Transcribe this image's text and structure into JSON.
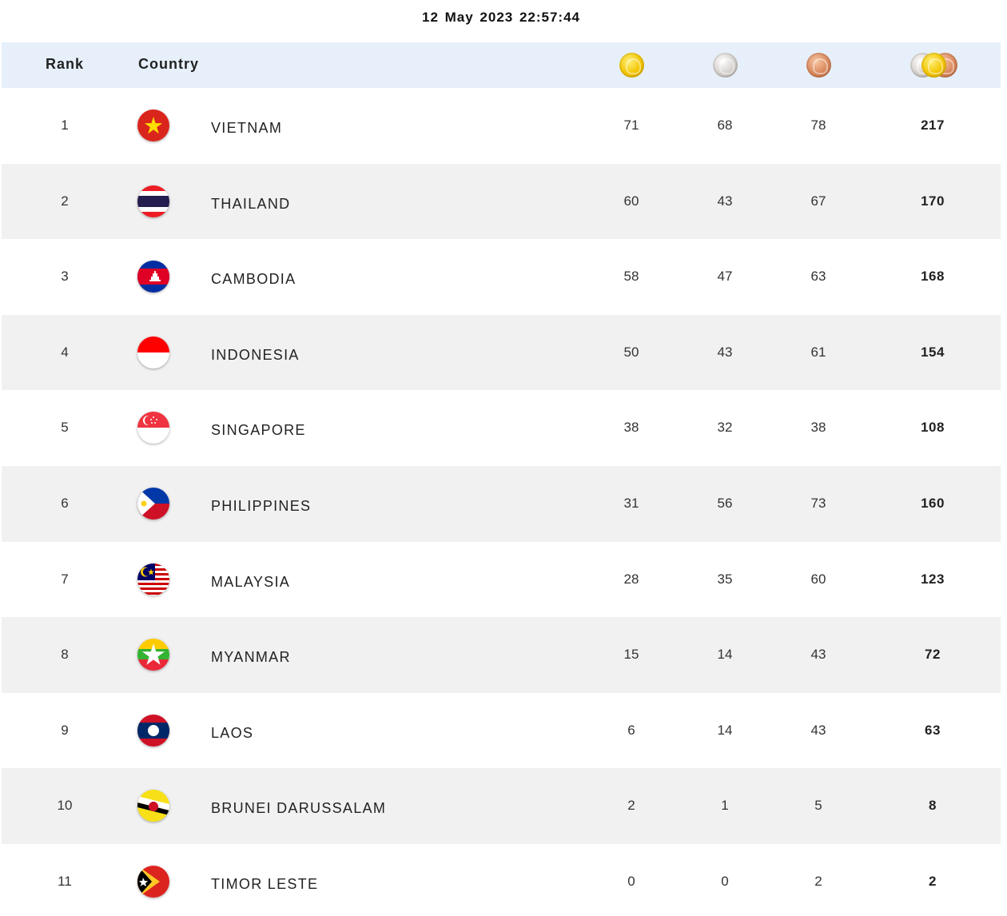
{
  "timestamp": "12 May 2023  22:57:44",
  "header": {
    "rank": "Rank",
    "country": "Country",
    "gold_icon": "gold-medal-icon",
    "silver_icon": "silver-medal-icon",
    "bronze_icon": "bronze-medal-icon",
    "total_icon": "all-medals-icon"
  },
  "colors": {
    "header_bg": "#e7f0fa",
    "row_alt_bg": "#f1f1f1"
  },
  "rows": [
    {
      "rank": "1",
      "country": "VIETNAM",
      "flag": "vietnam-flag-icon",
      "gold": "71",
      "silver": "68",
      "bronze": "78",
      "total": "217"
    },
    {
      "rank": "2",
      "country": "THAILAND",
      "flag": "thailand-flag-icon",
      "gold": "60",
      "silver": "43",
      "bronze": "67",
      "total": "170"
    },
    {
      "rank": "3",
      "country": "CAMBODIA",
      "flag": "cambodia-flag-icon",
      "gold": "58",
      "silver": "47",
      "bronze": "63",
      "total": "168"
    },
    {
      "rank": "4",
      "country": "INDONESIA",
      "flag": "indonesia-flag-icon",
      "gold": "50",
      "silver": "43",
      "bronze": "61",
      "total": "154"
    },
    {
      "rank": "5",
      "country": "SINGAPORE",
      "flag": "singapore-flag-icon",
      "gold": "38",
      "silver": "32",
      "bronze": "38",
      "total": "108"
    },
    {
      "rank": "6",
      "country": "PHILIPPINES",
      "flag": "philippines-flag-icon",
      "gold": "31",
      "silver": "56",
      "bronze": "73",
      "total": "160"
    },
    {
      "rank": "7",
      "country": "MALAYSIA",
      "flag": "malaysia-flag-icon",
      "gold": "28",
      "silver": "35",
      "bronze": "60",
      "total": "123"
    },
    {
      "rank": "8",
      "country": "MYANMAR",
      "flag": "myanmar-flag-icon",
      "gold": "15",
      "silver": "14",
      "bronze": "43",
      "total": "72"
    },
    {
      "rank": "9",
      "country": "LAOS",
      "flag": "laos-flag-icon",
      "gold": "6",
      "silver": "14",
      "bronze": "43",
      "total": "63"
    },
    {
      "rank": "10",
      "country": "BRUNEI DARUSSALAM",
      "flag": "brunei-flag-icon",
      "gold": "2",
      "silver": "1",
      "bronze": "5",
      "total": "8"
    },
    {
      "rank": "11",
      "country": "TIMOR LESTE",
      "flag": "timor-leste-flag-icon",
      "gold": "0",
      "silver": "0",
      "bronze": "2",
      "total": "2"
    }
  ]
}
